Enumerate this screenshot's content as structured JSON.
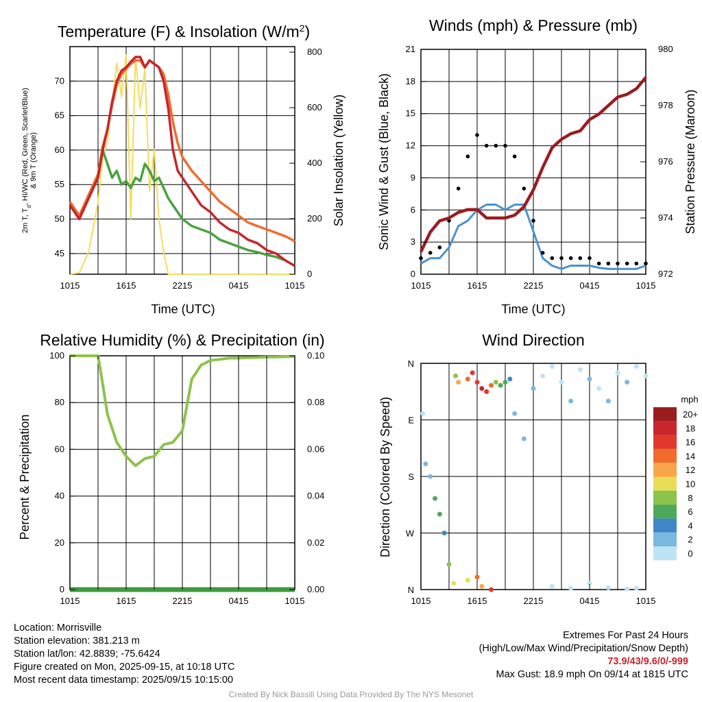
{
  "chart_data": [
    {
      "type": "line",
      "title": "Temperature (F) & Insolation (W/m²)",
      "xlabel": "Time (UTC)",
      "ylabel": "2m T, Td, HI/WC (Red, Green, Scarlet/Blue) & 9m T (Orange)",
      "ylabel_right": "Solar Insolation (Yellow)",
      "x_ticks": [
        "1015",
        "1615",
        "2215",
        "0415",
        "1015"
      ],
      "ylim": [
        42,
        75
      ],
      "yticks": [
        45,
        50,
        55,
        60,
        65,
        70
      ],
      "ylim_right": [
        0,
        820
      ],
      "yticks_right": [
        0,
        200,
        400,
        600,
        800
      ],
      "x_hours": [
        0,
        1,
        2,
        3,
        3.5,
        4,
        4.5,
        5,
        5.5,
        6,
        6.5,
        7,
        7.5,
        8,
        8.5,
        9,
        9.5,
        10,
        10.5,
        11,
        11.5,
        12,
        13,
        14,
        15,
        16,
        17,
        18,
        19,
        20,
        21,
        22,
        23,
        24
      ],
      "series": [
        {
          "color": "#c8252c",
          "axis": "left",
          "values": [
            52,
            50,
            53,
            56,
            60,
            63,
            67,
            70,
            71.5,
            72,
            72.8,
            73.5,
            73.5,
            72,
            73,
            72.5,
            72,
            70,
            66,
            60,
            57,
            56,
            54,
            52,
            51,
            49.5,
            48.5,
            48,
            47,
            46.5,
            45.5,
            45,
            44,
            43.2
          ]
        },
        {
          "color": "#f26b2b",
          "axis": "left",
          "values": [
            52.5,
            50.5,
            53.5,
            56.5,
            60.5,
            63,
            66.5,
            69.5,
            71,
            71.8,
            72.5,
            73,
            73,
            72,
            73,
            72.5,
            72,
            71,
            68,
            64,
            61,
            59,
            57,
            55.5,
            54,
            52.5,
            51.5,
            50.5,
            49.5,
            49,
            48.5,
            48,
            47.5,
            46.8
          ]
        },
        {
          "color": "#48a23f",
          "axis": "left",
          "values": [
            52,
            50,
            53,
            56,
            60,
            58,
            56,
            57,
            55,
            55.5,
            54.5,
            56,
            55.5,
            58,
            57,
            55.5,
            56,
            54.5,
            53,
            52,
            51,
            50,
            49,
            48.5,
            48,
            47,
            46.5,
            46,
            45.5,
            45.2,
            44.8,
            44.5,
            44,
            43.2
          ]
        },
        {
          "color": "#f5dc5a",
          "axis": "right",
          "values": [
            0,
            5,
            80,
            260,
            420,
            480,
            620,
            760,
            640,
            790,
            200,
            780,
            600,
            740,
            300,
            450,
            200,
            80,
            0,
            0,
            0,
            0,
            0,
            0,
            0,
            0,
            0,
            0,
            0,
            0,
            0,
            0,
            0,
            0
          ]
        }
      ]
    },
    {
      "type": "scatter",
      "title": "Winds (mph) & Pressure (mb)",
      "xlabel": "Time (UTC)",
      "ylabel": "Sonic Wind & Gust (Blue, Black)",
      "ylabel_right": "Station Pressure (Maroon)",
      "x_ticks": [
        "1015",
        "1615",
        "2215",
        "0415",
        "1015"
      ],
      "ylim": [
        0,
        21
      ],
      "yticks": [
        0,
        3,
        6,
        9,
        12,
        15,
        18,
        21
      ],
      "ylim_right": [
        972,
        980
      ],
      "yticks_right": [
        972,
        974,
        976,
        978,
        980
      ],
      "x_hours": [
        0,
        1,
        2,
        3,
        4,
        5,
        6,
        7,
        8,
        9,
        10,
        11,
        12,
        13,
        14,
        15,
        16,
        17,
        18,
        19,
        20,
        21,
        22,
        23,
        24
      ],
      "series": [
        {
          "color": "#4a92d0",
          "type": "line",
          "values": [
            1,
            1.5,
            1.5,
            2.5,
            4.5,
            5,
            6,
            6.5,
            6.5,
            6,
            6.5,
            6.5,
            4,
            1.5,
            0.8,
            0.5,
            0.8,
            0.8,
            0.8,
            0.6,
            0.5,
            0.5,
            0.5,
            0.5,
            0.8
          ]
        },
        {
          "color": "#000000",
          "type": "scatter",
          "values": [
            1.5,
            2,
            2.5,
            5,
            8,
            11,
            13,
            12,
            12,
            12,
            11,
            8,
            5,
            2,
            1.5,
            1.5,
            1.5,
            1.5,
            1.5,
            1,
            1,
            1,
            1,
            1,
            1
          ]
        },
        {
          "color": "#9b1c1f",
          "type": "line",
          "axis": "right",
          "values": [
            972.8,
            973.5,
            973.9,
            974.0,
            974.2,
            974.3,
            974.3,
            974.0,
            974.0,
            974.0,
            974.1,
            974.4,
            975.0,
            975.8,
            976.5,
            976.8,
            977.0,
            977.1,
            977.5,
            977.7,
            978.0,
            978.3,
            978.4,
            978.6,
            979.0
          ]
        }
      ]
    },
    {
      "type": "line",
      "title": "Relative Humidity (%) & Precipitation (in)",
      "ylabel": "Percent & Precipitation",
      "x_ticks": [
        "1015",
        "1615",
        "2215",
        "0415",
        "1015"
      ],
      "ylim": [
        0,
        100
      ],
      "yticks": [
        0,
        20,
        40,
        60,
        80,
        100
      ],
      "ylim_right": [
        0,
        0.1
      ],
      "yticks_right": [
        "0.00",
        "0.02",
        "0.04",
        "0.06",
        "0.08",
        "0.10"
      ],
      "x_hours": [
        0,
        1,
        2,
        3,
        3.5,
        4,
        5,
        6,
        7,
        8,
        9,
        10,
        11,
        12,
        13,
        14,
        15,
        16,
        17,
        18,
        19,
        20,
        21,
        22,
        23,
        24
      ],
      "series": [
        {
          "color": "#8cc34a",
          "values": [
            100,
            100,
            100,
            100,
            88,
            75,
            63,
            57,
            53,
            56,
            57,
            62,
            63,
            68,
            90,
            96,
            98,
            98.5,
            99,
            99,
            99.2,
            99.3,
            99.5,
            99.5,
            99.6,
            99.7
          ]
        },
        {
          "color": "#3f9a3f",
          "axis": "right",
          "values": [
            0,
            0,
            0,
            0,
            0,
            0,
            0,
            0,
            0,
            0,
            0,
            0,
            0,
            0,
            0,
            0,
            0,
            0,
            0,
            0,
            0,
            0,
            0,
            0,
            0,
            0
          ]
        }
      ]
    },
    {
      "type": "scatter",
      "title": "Wind Direction",
      "ylabel": "Direction (Colored By Speed)",
      "x_ticks": [
        "1015",
        "1615",
        "2215",
        "0415",
        "1015"
      ],
      "y_ticks": [
        "N",
        "W",
        "S",
        "E",
        "N"
      ],
      "legend_title": "mph",
      "legend_labels": [
        "20+",
        "18",
        "16",
        "14",
        "12",
        "10",
        "8",
        "6",
        "4",
        "2",
        "0"
      ],
      "legend_colors": [
        "#9b1c1f",
        "#c8252c",
        "#e0392b",
        "#f26b2b",
        "#f9a64a",
        "#e8dd57",
        "#8cc34a",
        "#4fa85a",
        "#3f87c6",
        "#7bb8e0",
        "#bde3f5"
      ],
      "points_sample": [
        [
          0.2,
          280,
          0
        ],
        [
          0.5,
          200,
          1
        ],
        [
          1,
          180,
          1
        ],
        [
          1.5,
          145,
          3
        ],
        [
          2,
          120,
          3
        ],
        [
          2.5,
          90,
          2
        ],
        [
          3,
          40,
          4
        ],
        [
          3.5,
          10,
          5
        ],
        [
          3.7,
          340,
          4
        ],
        [
          4,
          330,
          6
        ],
        [
          5,
          335,
          7
        ],
        [
          5.5,
          345,
          8
        ],
        [
          6,
          330,
          8
        ],
        [
          6.5,
          320,
          9
        ],
        [
          7,
          315,
          8
        ],
        [
          7.5,
          325,
          7
        ],
        [
          8,
          330,
          4
        ],
        [
          8.5,
          325,
          3
        ],
        [
          9,
          330,
          3
        ],
        [
          9.5,
          335,
          2
        ],
        [
          5,
          15,
          5
        ],
        [
          6,
          20,
          7
        ],
        [
          6.5,
          5,
          6
        ],
        [
          7.5,
          0,
          8
        ],
        [
          10,
          280,
          1
        ],
        [
          11,
          240,
          1
        ],
        [
          12,
          320,
          1
        ],
        [
          13,
          340,
          0
        ],
        [
          14,
          355,
          0
        ],
        [
          15,
          330,
          0
        ],
        [
          16,
          300,
          1
        ],
        [
          17,
          350,
          0
        ],
        [
          18,
          335,
          1
        ],
        [
          19,
          320,
          0
        ],
        [
          20,
          300,
          1
        ],
        [
          21,
          345,
          0
        ],
        [
          22,
          330,
          1
        ],
        [
          23,
          355,
          0
        ],
        [
          24,
          340,
          0
        ],
        [
          14,
          5,
          0
        ],
        [
          16,
          2,
          0
        ],
        [
          18,
          10,
          0
        ],
        [
          20,
          3,
          0
        ],
        [
          22,
          1,
          0
        ],
        [
          23,
          2,
          0
        ]
      ]
    }
  ],
  "footer_left": [
    "Location: Morrisville",
    "Station elevation: 381.213 m",
    "Station lat/lon: 42.8839; -75.6424",
    "Figure created on Mon, 2025-09-15, at 10:18 UTC",
    "Most recent data timestamp: 2025/09/15 10:15:00"
  ],
  "extremes": {
    "title": "Extremes For Past 24 Hours",
    "subtitle": "(High/Low/Max Wind/Precipitation/Snow Depth)",
    "values": "73.9/43/9.6/0/-999",
    "max_gust": "Max Gust: 18.9 mph On 09/14 at 1815 UTC",
    "value_color": "#c8252c"
  },
  "credit": "Created By Nick Bassill Using Data Provided By The NYS Mesonet"
}
